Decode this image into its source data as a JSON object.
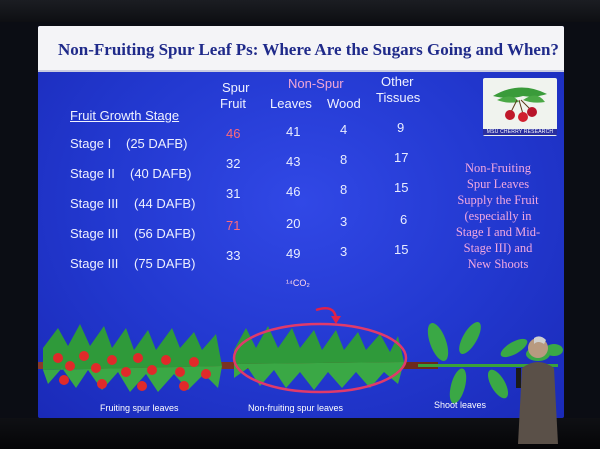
{
  "slide": {
    "title": "Non-Fruiting Spur Leaf Ps: Where Are the Sugars Going and When?",
    "logo_text": "MSU CHERRY RESEARCH",
    "table": {
      "row_header": "Fruit Growth Stage",
      "group_header": "Non-Spur",
      "columns": [
        {
          "line1": "Spur",
          "line2": "Fruit"
        },
        {
          "line1": "",
          "line2": "Leaves"
        },
        {
          "line1": "",
          "line2": "Wood"
        },
        {
          "line1": "Other",
          "line2": "Tissues"
        }
      ],
      "rows": [
        {
          "stage": "Stage I",
          "dafb": "(25 DAFB)",
          "values": [
            "46",
            "41",
            "4",
            "9"
          ]
        },
        {
          "stage": "Stage II",
          "dafb": "(40 DAFB)",
          "values": [
            "32",
            "43",
            "8",
            "17"
          ]
        },
        {
          "stage": "Stage III",
          "dafb": "(44 DAFB)",
          "values": [
            "31",
            "46",
            "8",
            "15"
          ]
        },
        {
          "stage": "Stage III",
          "dafb": "(56 DAFB)",
          "values": [
            "71",
            "20",
            "3",
            "6"
          ]
        },
        {
          "stage": "Stage III",
          "dafb": "(75 DAFB)",
          "values": [
            "33",
            "49",
            "3",
            "15"
          ]
        }
      ]
    },
    "note_lines": [
      "Non-Fruiting",
      "Spur Leaves",
      "Supply the Fruit",
      "(especially in",
      "Stage I and Mid-",
      "Stage III) and",
      "New Shoots"
    ],
    "co2_label": "¹⁴CO₂",
    "illustration_labels": {
      "fruiting": "Fruiting spur leaves",
      "nonfruiting": "Non-fruiting spur leaves",
      "shoot": "Shoot leaves"
    }
  },
  "colors": {
    "slide_blue": "#2238cf",
    "title_text": "#1f2a8a",
    "highlight_pink": "#f0a6d6",
    "fruit_red": "#e02a2a",
    "leaf_green": "#2f9a3a"
  }
}
